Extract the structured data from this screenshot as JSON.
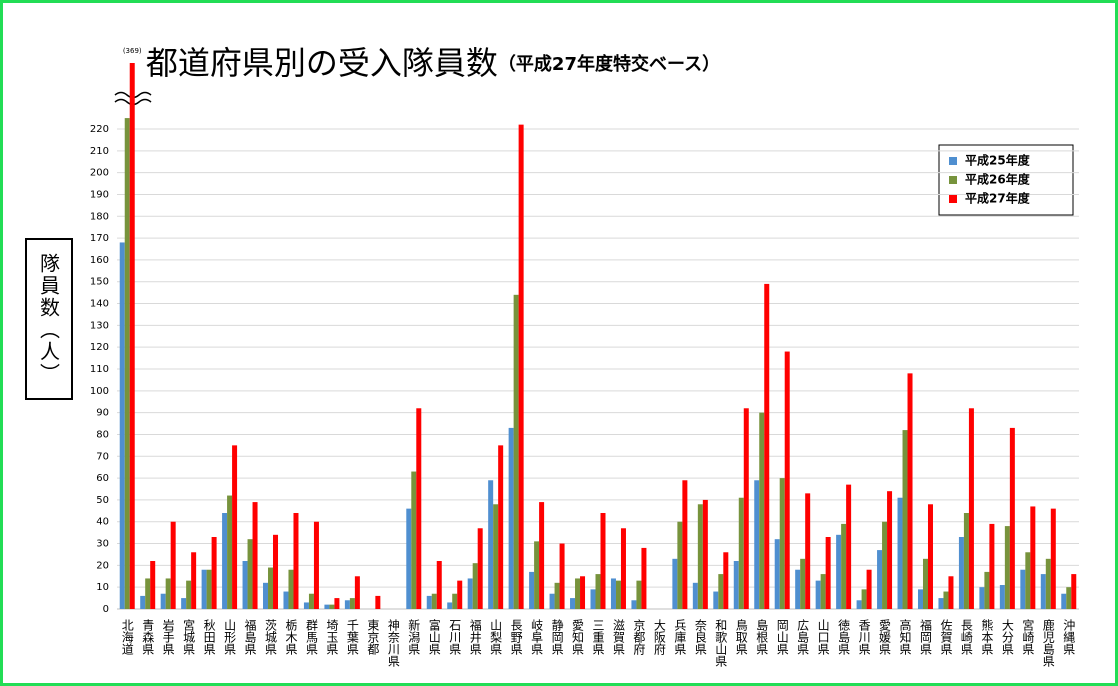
{
  "chart_data": {
    "type": "bar",
    "title": "都道府県別の受入隊員数",
    "subtitle": "（平成27年度特交ベース）",
    "y_label": "隊員数（人）",
    "categories": [
      "北海道",
      "青森県",
      "岩手県",
      "宮城県",
      "秋田県",
      "山形県",
      "福島県",
      "茨城県",
      "栃木県",
      "群馬県",
      "埼玉県",
      "千葉県",
      "東京都",
      "神奈川県",
      "新潟県",
      "富山県",
      "石川県",
      "福井県",
      "山梨県",
      "長野県",
      "岐阜県",
      "静岡県",
      "愛知県",
      "三重県",
      "滋賀県",
      "京都府",
      "大阪府",
      "兵庫県",
      "奈良県",
      "和歌山県",
      "鳥取県",
      "島根県",
      "岡山県",
      "広島県",
      "山口県",
      "徳島県",
      "香川県",
      "愛媛県",
      "高知県",
      "福岡県",
      "佐賀県",
      "長崎県",
      "熊本県",
      "大分県",
      "宮崎県",
      "鹿児島県",
      "沖縄県"
    ],
    "series": [
      {
        "name": "平成25年度",
        "color": "#4f8fd0",
        "values": [
          168,
          6,
          7,
          5,
          18,
          44,
          22,
          12,
          8,
          3,
          2,
          4,
          0,
          0,
          46,
          6,
          3,
          14,
          59,
          83,
          17,
          7,
          5,
          9,
          14,
          4,
          0,
          23,
          12,
          8,
          22,
          59,
          32,
          18,
          13,
          34,
          4,
          27,
          51,
          9,
          5,
          33,
          10,
          11,
          18,
          16,
          7
        ]
      },
      {
        "name": "平成26年度",
        "color": "#77933c",
        "values": [
          225,
          14,
          14,
          13,
          18,
          52,
          32,
          19,
          18,
          7,
          2,
          5,
          0,
          0,
          63,
          7,
          7,
          21,
          48,
          144,
          31,
          12,
          14,
          16,
          13,
          13,
          0,
          40,
          48,
          16,
          51,
          90,
          60,
          23,
          16,
          39,
          9,
          40,
          82,
          23,
          8,
          44,
          17,
          38,
          26,
          23,
          10
        ]
      },
      {
        "name": "平成27年度",
        "color": "#ff0000",
        "values": [
          369,
          22,
          40,
          26,
          33,
          75,
          49,
          34,
          44,
          40,
          5,
          15,
          6,
          0,
          92,
          22,
          13,
          37,
          75,
          222,
          49,
          30,
          15,
          44,
          37,
          28,
          0,
          59,
          50,
          26,
          92,
          149,
          118,
          53,
          33,
          57,
          18,
          54,
          108,
          48,
          15,
          92,
          39,
          83,
          47,
          46,
          16
        ],
        "value_labels": [
          "(369)",
          null,
          null,
          null,
          null,
          null,
          null,
          null,
          null,
          null,
          null,
          null,
          null,
          null,
          null,
          null,
          null,
          null,
          null,
          null,
          null,
          null,
          null,
          null,
          null,
          null,
          null,
          null,
          null,
          null,
          null,
          null,
          null,
          null,
          null,
          null,
          null,
          null,
          null,
          null,
          null,
          null,
          null,
          null,
          null,
          null,
          null
        ]
      }
    ],
    "ylim": [
      0,
      220
    ],
    "yticks": [
      0,
      10,
      20,
      30,
      40,
      50,
      60,
      70,
      80,
      90,
      100,
      110,
      120,
      130,
      140,
      150,
      160,
      170,
      180,
      190,
      200,
      210,
      220
    ],
    "grid": true,
    "y_break": true,
    "legend": "upper right"
  }
}
